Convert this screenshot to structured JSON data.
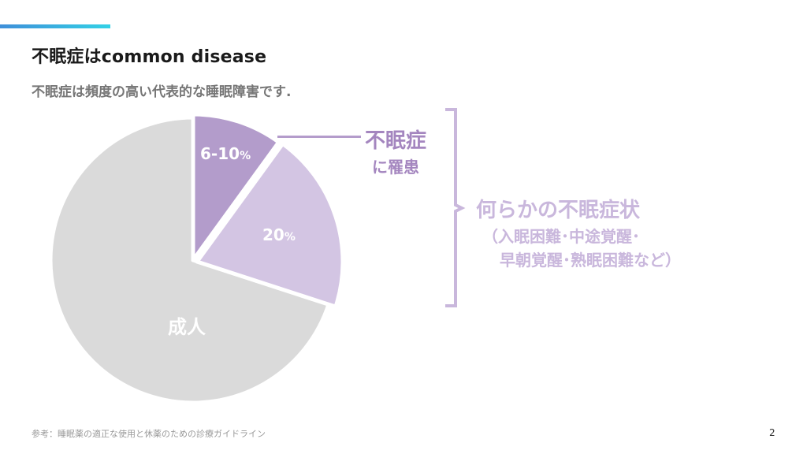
{
  "slide": {
    "title": "不眠症はcommon disease",
    "subtitle": "不眠症は頻度の高い代表的な睡眠障害です.",
    "footnote": "参考：睡眠薬の適正な使用と休薬のための診療ガイドライン",
    "page_number": "2"
  },
  "pie": {
    "segments": [
      {
        "label": "6-10",
        "unit": "%",
        "fraction": 0.1,
        "color": "#b39ccb"
      },
      {
        "label": "20",
        "unit": "%",
        "fraction": 0.2,
        "color": "#d3c5e3"
      },
      {
        "label": "成人",
        "fraction": 0.7,
        "color": "#dadada"
      }
    ]
  },
  "callout": {
    "title": "不眠症",
    "subtitle": "に罹患"
  },
  "symptoms": {
    "title": "何らかの不眠症状",
    "line1": "（入眠困難･中途覚醒･",
    "line2": "早朝覚醒･熟眠困難など）"
  },
  "colors": {
    "accent_start": "#3f8fd9",
    "accent_end": "#33d1e6",
    "insomnia_text": "#a486bf",
    "symptoms_text": "#c9b7dc",
    "adult": "#dadada"
  }
}
